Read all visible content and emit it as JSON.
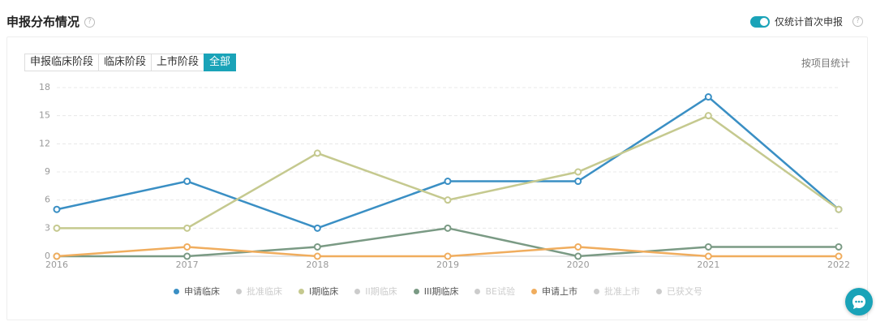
{
  "header": {
    "title": "申报分布情况",
    "toggle_label": "仅统计首次申报"
  },
  "tabs": [
    "申报临床阶段",
    "临床阶段",
    "上市阶段",
    "全部"
  ],
  "active_tab": 3,
  "stat_label": "按项目统计",
  "chart_data": {
    "type": "line",
    "x": [
      2016,
      2017,
      2018,
      2019,
      2020,
      2021,
      2022
    ],
    "xlim": [
      2016,
      2022
    ],
    "xticks": [
      2016,
      2017,
      2018,
      2019,
      2020,
      2021,
      2022
    ],
    "ylim": [
      0,
      18
    ],
    "yticks": [
      0,
      3,
      6,
      9,
      12,
      15,
      18
    ],
    "grid": true,
    "series": [
      {
        "name": "申请临床",
        "color": "#3a8fc4",
        "visible": true,
        "values": [
          5,
          8,
          3,
          8,
          8,
          17,
          5
        ]
      },
      {
        "name": "批准临床",
        "color": "#ccc",
        "visible": false
      },
      {
        "name": "I期临床",
        "color": "#c5c98f",
        "visible": true,
        "values": [
          3,
          3,
          11,
          6,
          9,
          15,
          5
        ]
      },
      {
        "name": "II期临床",
        "color": "#ccc",
        "visible": false
      },
      {
        "name": "III期临床",
        "color": "#7a9a84",
        "visible": true,
        "values": [
          0,
          0,
          1,
          3,
          0,
          1,
          1
        ]
      },
      {
        "name": "BE试验",
        "color": "#ccc",
        "visible": false
      },
      {
        "name": "申请上市",
        "color": "#f0ad5e",
        "visible": true,
        "values": [
          0,
          1,
          0,
          0,
          1,
          0,
          0
        ]
      },
      {
        "name": "批准上市",
        "color": "#ccc",
        "visible": false
      },
      {
        "name": "已获文号",
        "color": "#ccc",
        "visible": false
      }
    ]
  }
}
